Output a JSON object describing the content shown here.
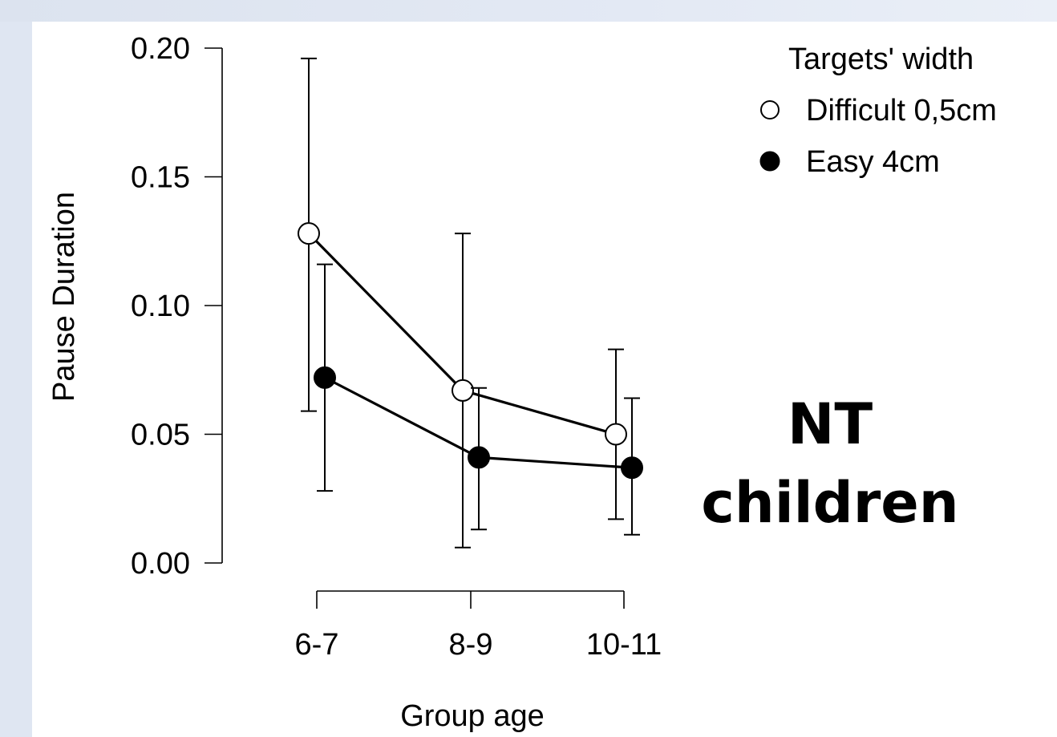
{
  "chart_data": {
    "type": "line",
    "title": "",
    "xlabel": "Group age",
    "ylabel": "Pause Duration",
    "categories": [
      "6-7",
      "8-9",
      "10-11"
    ],
    "ylim": [
      0,
      0.2
    ],
    "yticks": [
      "0.00",
      "0.05",
      "0.10",
      "0.15",
      "0.20"
    ],
    "grid": false,
    "legend": {
      "title": "Targets' width",
      "placement": "top-right"
    },
    "series": [
      {
        "name": "Difficult 0,5cm",
        "marker": "open-circle",
        "values": [
          0.128,
          0.067,
          0.05
        ],
        "error_low": [
          0.059,
          0.006,
          0.017
        ],
        "error_high": [
          0.196,
          0.128,
          0.083
        ]
      },
      {
        "name": "Easy 4cm",
        "marker": "filled-circle",
        "values": [
          0.072,
          0.041,
          0.037
        ],
        "error_low": [
          0.028,
          0.013,
          0.011
        ],
        "error_high": [
          0.116,
          0.068,
          0.064
        ]
      }
    ],
    "annotation": [
      "NT",
      "children"
    ]
  },
  "colors": {
    "page_background": "#dfe6f2",
    "panel_background": "#ffffff",
    "ink": "#000000"
  }
}
